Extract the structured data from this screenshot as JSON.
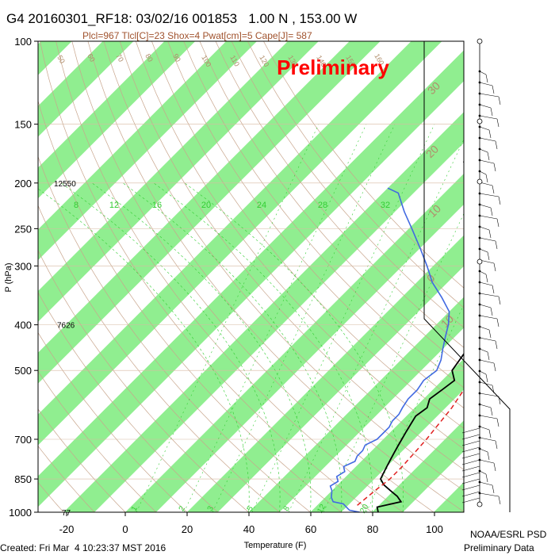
{
  "header": {
    "title": "G4 20160301_RF18: 03/02/16 001853   1.00 N , 153.00 W",
    "subtitle": "Plcl=967 Tlcl[C]=23 Shox=4 Pwat[cm]=5 Cape[J]= 587"
  },
  "watermark": "Preliminary",
  "footer": {
    "created": "Created: Fri Mar  4 10:23:37 MST 2016",
    "credit_line1": "NOAA/ESRL PSD",
    "credit_line2": "Preliminary Data"
  },
  "colors": {
    "band": "#90ee90",
    "dry_adiabat": "#c8a58c",
    "label_brown": "#b08d6b",
    "mixing_ratio": "#32cd32",
    "temperature": "#000000",
    "dewpoint": "#4169e1",
    "parcel": "#e02020",
    "watermark": "#ff0000"
  },
  "chart_data": {
    "type": "line",
    "title": "",
    "xlabel": "Temperature (F)",
    "ylabel": "P (hPa)",
    "x_ticks": [
      "-20",
      "0",
      "20",
      "40",
      "60",
      "80",
      "100"
    ],
    "y_ticks": [
      "100",
      "150",
      "200",
      "250",
      "300",
      "400",
      "500",
      "700",
      "850",
      "1000"
    ],
    "height_labels": [
      {
        "p": 200,
        "label": "12550"
      },
      {
        "p": 400,
        "label": "7626"
      },
      {
        "p": 1000,
        "label": "77"
      }
    ],
    "mixing_ratio_top_labels": [
      "8",
      "12",
      "16",
      "20",
      "24",
      "28",
      "32"
    ],
    "mixing_ratio_bottom_labels": [
      "1",
      "2",
      "3",
      "5",
      "8",
      "12",
      "20"
    ],
    "isotherm_labels": [
      "30",
      "20",
      "10",
      "0",
      "10",
      "20"
    ],
    "dry_adiabat_labels": [
      "50",
      "60",
      "70",
      "80",
      "90",
      "100",
      "110",
      "120",
      "130",
      "140",
      "150",
      "160"
    ],
    "series": [
      {
        "name": "Temperature",
        "x_unit": "F",
        "p": [
          1000,
          975,
          950,
          925,
          900,
          875,
          850,
          825,
          800,
          775,
          750,
          725,
          700,
          675,
          650,
          625,
          600,
          575,
          550,
          525,
          500,
          475,
          450,
          425,
          400,
          375,
          350,
          325,
          300,
          275,
          250,
          230,
          210,
          200,
          190,
          180
        ],
        "values": [
          82,
          80,
          86,
          83,
          79,
          75,
          72,
          71,
          70,
          69,
          68,
          67,
          66,
          65,
          64,
          63,
          64,
          62,
          63,
          64,
          60,
          59,
          58,
          57,
          54,
          50,
          46,
          41,
          36,
          30,
          23,
          16,
          9,
          5,
          1,
          -4
        ]
      },
      {
        "name": "Dewpoint",
        "x_unit": "F",
        "p": [
          1000,
          990,
          975,
          960,
          950,
          930,
          900,
          880,
          860,
          840,
          820,
          800,
          780,
          760,
          740,
          720,
          700,
          680,
          660,
          640,
          620,
          600,
          575,
          550,
          525,
          500,
          475,
          450,
          425,
          400,
          375,
          350,
          325,
          300,
          275,
          250,
          230,
          210,
          205
        ],
        "values": [
          76,
          72,
          70,
          68,
          64,
          62,
          60,
          58,
          59,
          57,
          58,
          56,
          58,
          57,
          57,
          56,
          58,
          58,
          58,
          57,
          57,
          56,
          55,
          55,
          54,
          55,
          53,
          50,
          47,
          44,
          40,
          33,
          25,
          18,
          10,
          1,
          -7,
          -15,
          -20
        ]
      },
      {
        "name": "Parcel",
        "x_unit": "F",
        "p": [
          967,
          900,
          850,
          800,
          700,
          600,
          500,
          400,
          300,
          250,
          200,
          180
        ],
        "values": [
          73,
          74,
          75,
          75,
          74,
          72,
          68,
          60,
          45,
          33,
          15,
          4
        ]
      }
    ],
    "p_range": [
      100,
      1000
    ],
    "t_range_f": [
      -30,
      110
    ],
    "wind_staff": true
  }
}
